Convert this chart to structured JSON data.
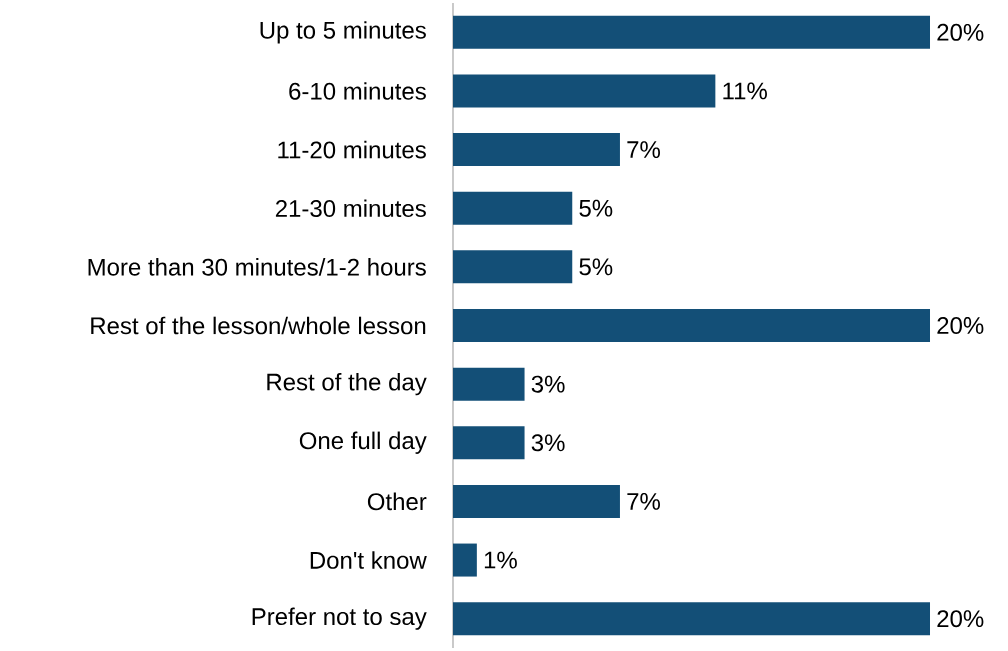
{
  "chart_data": {
    "type": "bar",
    "orientation": "horizontal",
    "categories": [
      "Up to 5 minutes",
      "6-10 minutes",
      "11-20 minutes",
      "21-30 minutes",
      "More than 30 minutes/1-2 hours",
      "Rest of the lesson/whole lesson",
      "Rest of the day",
      "One full day",
      "Other",
      "Don't know",
      "Prefer not to say"
    ],
    "values": [
      20,
      11,
      7,
      5,
      5,
      20,
      3,
      3,
      7,
      1,
      20
    ],
    "value_labels": [
      "20%",
      "11%",
      "7%",
      "5%",
      "5%",
      "20%",
      "3%",
      "3%",
      "7%",
      "1%",
      "20%"
    ],
    "color": "#134f77",
    "xlim": [
      0,
      20
    ]
  }
}
